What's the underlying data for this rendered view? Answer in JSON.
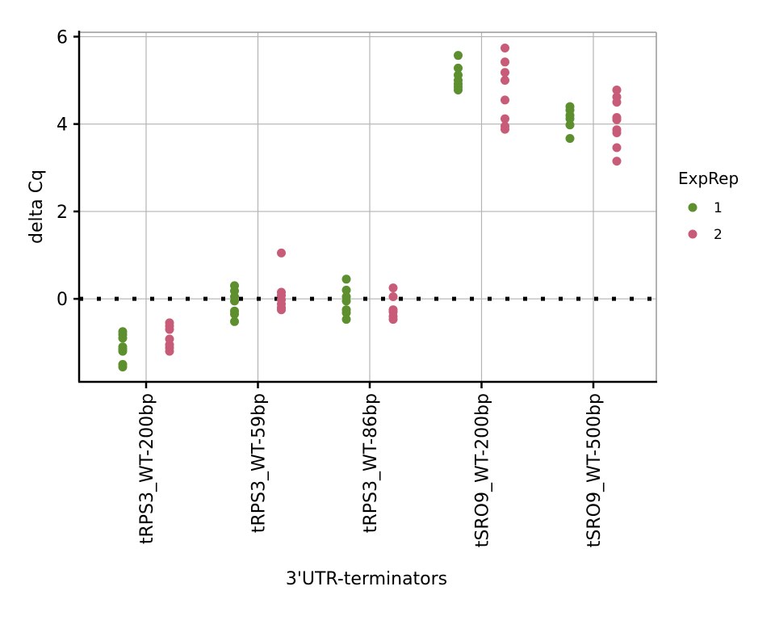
{
  "chart_data": {
    "type": "scatter",
    "title": "",
    "xlabel": "3'UTR-terminators",
    "ylabel": "delta Cq",
    "categories": [
      "tRPS3_WT-200bp",
      "tRPS3_WT-59bp",
      "tRPS3_WT-86bp",
      "tSRO9_WT-200bp",
      "tSRO9_WT-500bp"
    ],
    "ylim": [
      -1.9,
      6.1
    ],
    "yticks": [
      0,
      2,
      4,
      6
    ],
    "grid": true,
    "reference_line": {
      "y": 0,
      "style": "dotted",
      "color": "#000000"
    },
    "legend": {
      "title": "ExpRep",
      "placement": "right"
    },
    "series": [
      {
        "name": "1",
        "color": "#5d8f2f",
        "values": [
          [
            -0.75,
            -0.82,
            -0.9,
            -1.1,
            -1.15,
            -1.2,
            -1.5,
            -1.56
          ],
          [
            0.3,
            0.18,
            0.05,
            -0.05,
            -0.28,
            -0.35,
            -0.52
          ],
          [
            0.45,
            0.2,
            0.05,
            -0.05,
            -0.25,
            -0.32,
            -0.47
          ],
          [
            5.57,
            5.28,
            5.12,
            5.0,
            4.92,
            4.85,
            4.78
          ],
          [
            4.4,
            4.32,
            4.2,
            4.12,
            3.98,
            3.67
          ]
        ]
      },
      {
        "name": "2",
        "color": "#c75b78",
        "values": [
          [
            -0.55,
            -0.62,
            -0.7,
            -0.92,
            -1.05,
            -1.12,
            -1.2
          ],
          [
            1.05,
            0.15,
            0.08,
            -0.02,
            -0.12,
            -0.2,
            -0.25
          ],
          [
            0.25,
            0.05,
            -0.25,
            -0.3,
            -0.4,
            -0.47
          ],
          [
            5.74,
            5.42,
            5.18,
            5.0,
            4.55,
            4.12,
            3.95,
            3.88
          ],
          [
            4.78,
            4.62,
            4.5,
            4.15,
            4.1,
            3.87,
            3.8,
            3.46,
            3.15
          ]
        ]
      }
    ]
  }
}
